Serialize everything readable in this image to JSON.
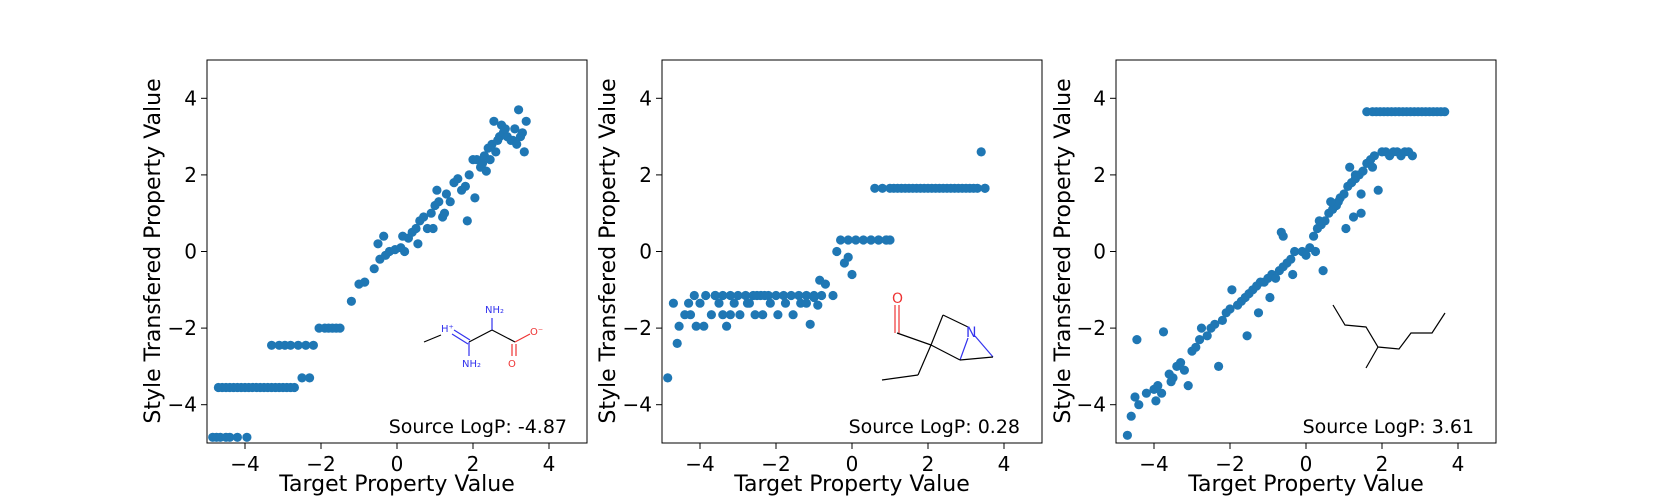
{
  "style": {
    "point_color": "#1f77b4",
    "axis_color": "#000000",
    "background": "#ffffff"
  },
  "chart_data": [
    {
      "type": "scatter",
      "xlabel": "Target Property Value",
      "ylabel": "Style Transfered Property Value",
      "xlim": [
        -5,
        5
      ],
      "ylim": [
        -5,
        5
      ],
      "xticks": [
        -4,
        -2,
        0,
        2,
        4
      ],
      "yticks": [
        -4,
        -2,
        0,
        2,
        4
      ],
      "xtick_labels": [
        "−4",
        "−2",
        "0",
        "2",
        "4"
      ],
      "ytick_labels": [
        "−4",
        "−2",
        "0",
        "2",
        "4"
      ],
      "annotation": "Source LogP: -4.87",
      "molecule_atom_labels": [
        "H⁺",
        "NH₂",
        "NH₂",
        "O",
        "O⁻"
      ],
      "x": [
        -4.85,
        -4.75,
        -4.65,
        -4.5,
        -4.4,
        -4.2,
        -3.95,
        -4.7,
        -4.6,
        -4.5,
        -4.4,
        -4.3,
        -4.2,
        -4.1,
        -4.0,
        -3.9,
        -3.8,
        -3.7,
        -3.6,
        -3.5,
        -3.4,
        -3.3,
        -3.2,
        -3.1,
        -3.0,
        -2.9,
        -2.8,
        -2.7,
        -3.3,
        -3.1,
        -2.95,
        -2.8,
        -2.6,
        -2.4,
        -2.2,
        -2.05,
        -1.9,
        -1.8,
        -1.7,
        -1.6,
        -1.5,
        -2.5,
        -2.3,
        -1.2,
        -1.0,
        -0.85,
        -0.6,
        -0.45,
        -0.3,
        -0.2,
        -0.05,
        0.1,
        0.2,
        0.3,
        0.4,
        0.5,
        0.6,
        0.7,
        0.8,
        0.9,
        1.0,
        1.1,
        1.2,
        1.3,
        1.4,
        -0.5,
        -0.35,
        1.5,
        1.6,
        1.7,
        1.8,
        1.9,
        2.0,
        2.1,
        2.2,
        2.3,
        2.4,
        2.5,
        2.6,
        2.7,
        2.8,
        2.9,
        3.0,
        3.1,
        3.2,
        3.3,
        3.4,
        1.85,
        2.35,
        0.15,
        0.55,
        0.95,
        1.25,
        1.05,
        2.05,
        2.55,
        2.75,
        3.05,
        3.25,
        3.35,
        2.25,
        2.45,
        2.65,
        2.85,
        3.15
      ],
      "y": [
        -4.85,
        -4.85,
        -4.85,
        -4.85,
        -4.85,
        -4.85,
        -4.85,
        -3.55,
        -3.55,
        -3.55,
        -3.55,
        -3.55,
        -3.55,
        -3.55,
        -3.55,
        -3.55,
        -3.55,
        -3.55,
        -3.55,
        -3.55,
        -3.55,
        -3.55,
        -3.55,
        -3.55,
        -3.55,
        -3.55,
        -3.55,
        -3.55,
        -2.45,
        -2.45,
        -2.45,
        -2.45,
        -2.45,
        -2.45,
        -2.45,
        -2.0,
        -2.0,
        -2.0,
        -2.0,
        -2.0,
        -2.0,
        -3.3,
        -3.3,
        -1.3,
        -0.85,
        -0.8,
        -0.45,
        -0.2,
        -0.1,
        0.0,
        0.05,
        0.1,
        0.0,
        0.35,
        0.5,
        0.6,
        0.8,
        0.9,
        0.6,
        1.0,
        1.2,
        1.3,
        0.9,
        1.5,
        1.3,
        0.2,
        0.4,
        1.8,
        1.9,
        1.6,
        1.7,
        2.0,
        2.4,
        2.4,
        2.2,
        2.5,
        2.7,
        2.8,
        2.6,
        3.0,
        3.1,
        3.0,
        2.9,
        3.2,
        3.7,
        3.1,
        3.4,
        0.8,
        2.1,
        0.4,
        0.2,
        0.6,
        1.0,
        1.6,
        1.4,
        3.4,
        3.3,
        2.9,
        3.0,
        2.6,
        2.3,
        2.4,
        2.9,
        3.2,
        2.8
      ]
    },
    {
      "type": "scatter",
      "xlabel": "Target Property Value",
      "ylabel": "Style Transfered Property Value",
      "xlim": [
        -5,
        5
      ],
      "ylim": [
        -5,
        5
      ],
      "xticks": [
        -4,
        -2,
        0,
        2,
        4
      ],
      "yticks": [
        -4,
        -2,
        0,
        2,
        4
      ],
      "xtick_labels": [
        "−4",
        "−2",
        "0",
        "2",
        "4"
      ],
      "ytick_labels": [
        "−4",
        "−2",
        "0",
        "2",
        "4"
      ],
      "annotation": "Source LogP: 0.28",
      "molecule_atom_labels": [
        "O",
        "N"
      ],
      "x": [
        -4.85,
        -4.7,
        -4.6,
        -4.4,
        -4.25,
        -4.55,
        -4.3,
        -4.1,
        -4.0,
        -3.9,
        -3.7,
        -3.5,
        -3.3,
        -3.2,
        -4.15,
        -3.85,
        -3.6,
        -3.4,
        -3.6,
        -3.4,
        -3.2,
        -3.0,
        -2.8,
        -2.6,
        -2.4,
        -2.2,
        -2.0,
        -1.8,
        -1.6,
        -1.4,
        -1.2,
        -1.0,
        -0.8,
        -3.1,
        -2.95,
        -2.75,
        -2.55,
        -2.35,
        -2.15,
        -1.95,
        -1.75,
        -1.55,
        -1.35,
        -1.1,
        -0.9,
        -2.7,
        -2.5,
        -2.3,
        -1.0,
        -0.85,
        -0.7,
        -1.2,
        -0.5,
        -0.3,
        -0.1,
        0.1,
        0.3,
        0.5,
        0.7,
        0.9,
        1.0,
        -0.4,
        -0.2,
        0.0,
        -0.1,
        0.5,
        0.7,
        0.9,
        1.1,
        1.3,
        1.5,
        1.7,
        1.9,
        2.1,
        2.3,
        2.5,
        2.7,
        2.9,
        3.1,
        3.3,
        3.5,
        0.6,
        0.8,
        1.0,
        1.2,
        1.4,
        1.6,
        1.8,
        2.0,
        2.2,
        2.4,
        2.6,
        2.8,
        3.0,
        3.2,
        3.4,
        3.5
      ],
      "y": [
        -3.3,
        -1.35,
        -2.4,
        -1.65,
        -1.65,
        -1.95,
        -1.35,
        -1.95,
        -1.35,
        -1.95,
        -1.65,
        -1.35,
        -1.95,
        -1.65,
        -1.15,
        -1.15,
        -1.15,
        -1.65,
        -1.15,
        -1.15,
        -1.15,
        -1.15,
        -1.15,
        -1.15,
        -1.15,
        -1.15,
        -1.15,
        -1.15,
        -1.15,
        -1.15,
        -1.15,
        -1.15,
        -1.15,
        -1.35,
        -1.65,
        -1.35,
        -1.65,
        -1.65,
        -1.35,
        -1.65,
        -1.35,
        -1.65,
        -1.35,
        -1.9,
        -1.4,
        -1.35,
        -1.15,
        -1.15,
        -1.2,
        -0.75,
        -0.85,
        -1.35,
        -1.15,
        0.3,
        0.3,
        0.3,
        0.3,
        0.3,
        0.3,
        0.3,
        0.3,
        0.0,
        -0.3,
        -0.6,
        -0.15,
        0.3,
        0.3,
        0.3,
        1.65,
        1.65,
        1.65,
        1.65,
        1.65,
        1.65,
        1.65,
        1.65,
        1.65,
        1.65,
        1.65,
        1.65,
        1.65,
        1.65,
        1.65,
        1.65,
        1.65,
        1.65,
        1.65,
        1.65,
        1.65,
        1.65,
        1.65,
        1.65,
        1.65,
        1.65,
        1.65,
        2.6,
        1.65
      ]
    },
    {
      "type": "scatter",
      "xlabel": "Target Property Value",
      "ylabel": "Style Transfered Property Value",
      "xlim": [
        -5,
        5
      ],
      "ylim": [
        -5,
        5
      ],
      "xticks": [
        -4,
        -2,
        0,
        2,
        4
      ],
      "yticks": [
        -4,
        -2,
        0,
        2,
        4
      ],
      "xtick_labels": [
        "−4",
        "−2",
        "0",
        "2",
        "4"
      ],
      "ytick_labels": [
        "−4",
        "−2",
        "0",
        "2",
        "4"
      ],
      "annotation": "Source LogP: 3.61",
      "molecule_atom_labels": [],
      "x": [
        -4.7,
        -4.6,
        -4.5,
        -4.4,
        -4.2,
        -4.0,
        -3.9,
        -3.8,
        -3.6,
        -3.5,
        -3.4,
        -3.3,
        -3.2,
        -3.0,
        -2.9,
        -2.8,
        -2.6,
        -2.5,
        -2.4,
        -2.2,
        -2.1,
        -2.0,
        -1.8,
        -1.7,
        -1.6,
        -1.5,
        -1.4,
        -1.3,
        -1.2,
        -1.1,
        -1.0,
        -0.9,
        -0.8,
        -0.7,
        -0.6,
        -0.5,
        -0.4,
        -0.3,
        -0.1,
        0.0,
        0.1,
        0.2,
        0.3,
        0.4,
        0.5,
        0.6,
        0.7,
        0.8,
        0.9,
        1.0,
        1.1,
        1.2,
        1.3,
        1.4,
        1.5,
        1.6,
        1.7,
        1.8,
        -4.45,
        -3.95,
        -3.75,
        -3.55,
        -3.1,
        -2.75,
        -2.3,
        -1.95,
        -1.55,
        -1.25,
        -0.95,
        -0.65,
        -0.35,
        0.25,
        0.45,
        0.85,
        1.15,
        1.45,
        -0.6,
        0.35,
        0.65,
        1.05,
        1.25,
        1.75,
        1.9,
        2.0,
        2.1,
        2.2,
        2.3,
        2.4,
        2.5,
        2.6,
        2.7,
        2.8,
        1.6,
        1.75,
        1.85,
        1.95,
        2.05,
        2.15,
        2.25,
        2.35,
        2.45,
        2.55,
        2.65,
        2.75,
        2.85,
        2.95,
        3.05,
        3.15,
        3.25,
        3.35,
        3.45,
        3.55,
        3.65,
        1.3,
        1.45
      ],
      "y": [
        -4.8,
        -4.3,
        -3.8,
        -4.0,
        -3.7,
        -3.6,
        -3.5,
        -3.7,
        -3.2,
        -3.3,
        -3.0,
        -2.9,
        -3.1,
        -2.6,
        -2.5,
        -2.3,
        -2.2,
        -2.0,
        -1.9,
        -1.8,
        -1.6,
        -1.5,
        -1.4,
        -1.3,
        -1.2,
        -1.1,
        -1.0,
        -0.9,
        -0.8,
        -0.8,
        -0.7,
        -0.6,
        -0.7,
        -0.5,
        -0.4,
        -0.3,
        -0.2,
        0.0,
        0.0,
        -0.1,
        0.1,
        0.4,
        0.6,
        0.7,
        0.8,
        1.0,
        1.1,
        1.2,
        1.4,
        1.5,
        1.7,
        1.8,
        1.9,
        2.0,
        2.1,
        2.3,
        2.4,
        2.5,
        -2.3,
        -3.9,
        -2.1,
        -3.4,
        -3.5,
        -2.0,
        -3.0,
        -1.0,
        -2.2,
        -1.6,
        -1.2,
        0.5,
        -0.6,
        0.0,
        -0.5,
        1.3,
        2.2,
        1.0,
        0.4,
        0.8,
        1.3,
        0.6,
        0.9,
        2.2,
        1.6,
        2.6,
        2.6,
        2.5,
        2.6,
        2.6,
        2.5,
        2.6,
        2.6,
        2.5,
        3.65,
        3.65,
        3.65,
        3.65,
        3.65,
        3.65,
        3.65,
        3.65,
        3.65,
        3.65,
        3.65,
        3.65,
        3.65,
        3.65,
        3.65,
        3.65,
        3.65,
        3.65,
        3.65,
        3.65,
        3.65,
        2.0,
        1.5
      ]
    }
  ]
}
